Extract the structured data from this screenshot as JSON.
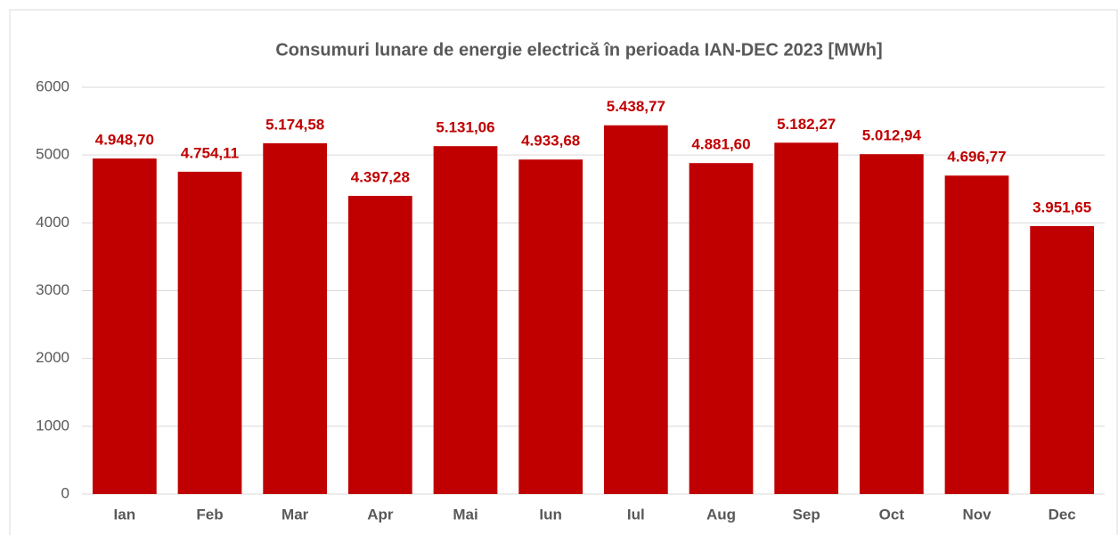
{
  "chart_data": {
    "type": "bar",
    "title": "Consumuri lunare de energie electrică în perioada IAN-DEC 2023 [MWh]",
    "categories": [
      "Ian",
      "Feb",
      "Mar",
      "Apr",
      "Mai",
      "Iun",
      "Iul",
      "Aug",
      "Sep",
      "Oct",
      "Nov",
      "Dec"
    ],
    "values": [
      4948.7,
      4754.11,
      5174.58,
      4397.28,
      5131.06,
      4933.68,
      5438.77,
      4881.6,
      5182.27,
      5012.94,
      4696.77,
      3951.65
    ],
    "value_labels": [
      "4.948,70",
      "4.754,11",
      "5.174,58",
      "4.397,28",
      "5.131,06",
      "4.933,68",
      "5.438,77",
      "4.881,60",
      "5.182,27",
      "5.012,94",
      "4.696,77",
      "3.951,65"
    ],
    "color": "#c00000",
    "ylim": [
      0,
      6000
    ],
    "yticks": [
      0,
      1000,
      2000,
      3000,
      4000,
      5000,
      6000
    ],
    "grid": true
  }
}
